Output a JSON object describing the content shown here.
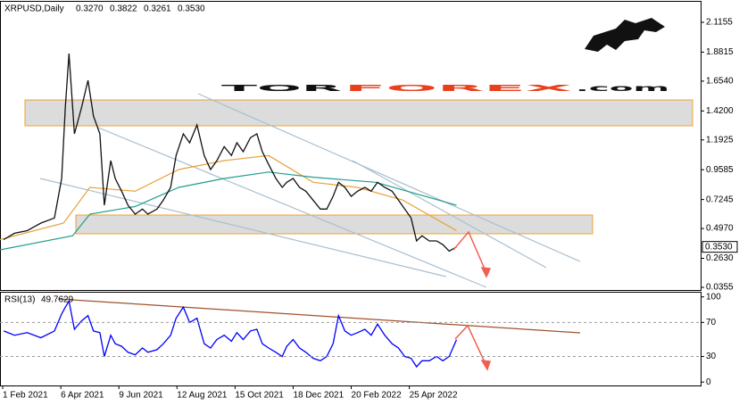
{
  "logo": {
    "part1": "TOR",
    "part2": "FOREX",
    "part3": ".com"
  },
  "chart_data": [
    {
      "type": "line",
      "title": "XRPUSD,Daily",
      "ohlc": [
        "0.3270",
        "0.3822",
        "0.3261",
        "0.3530"
      ],
      "color": "#111111",
      "x": [
        "2021-02-02",
        "2021-02-14",
        "2021-02-28",
        "2021-03-15",
        "2021-03-30",
        "2021-04-07",
        "2021-04-11",
        "2021-04-15",
        "2021-04-21",
        "2021-04-29",
        "2021-05-06",
        "2021-05-12",
        "2021-05-19",
        "2021-05-24",
        "2021-05-31",
        "2021-06-05",
        "2021-06-12",
        "2021-06-19",
        "2021-06-27",
        "2021-07-05",
        "2021-07-11",
        "2021-07-21",
        "2021-07-28",
        "2021-08-05",
        "2021-08-11",
        "2021-08-19",
        "2021-08-26",
        "2021-09-03",
        "2021-09-11",
        "2021-09-18",
        "2021-09-25",
        "2021-10-03",
        "2021-10-11",
        "2021-10-17",
        "2021-10-24",
        "2021-11-01",
        "2021-11-08",
        "2021-11-14",
        "2021-11-21",
        "2021-11-29",
        "2021-12-06",
        "2021-12-11",
        "2021-12-18",
        "2021-12-25",
        "2022-01-01",
        "2022-01-09",
        "2022-01-17",
        "2022-01-24",
        "2022-01-31",
        "2022-02-06",
        "2022-02-13",
        "2022-02-20",
        "2022-02-27",
        "2022-03-07",
        "2022-03-14",
        "2022-03-21",
        "2022-03-29",
        "2022-04-06",
        "2022-04-13",
        "2022-04-20",
        "2022-04-27",
        "2022-05-03",
        "2022-05-09",
        "2022-05-17",
        "2022-05-25",
        "2022-06-01",
        "2022-06-08",
        "2022-06-16"
      ],
      "values": [
        0.41,
        0.46,
        0.48,
        0.54,
        0.58,
        0.89,
        1.45,
        1.87,
        1.24,
        1.45,
        1.66,
        1.38,
        1.24,
        0.68,
        1.03,
        0.89,
        0.79,
        0.68,
        0.61,
        0.65,
        0.61,
        0.65,
        0.72,
        0.82,
        1.07,
        1.24,
        1.17,
        1.31,
        1.07,
        0.96,
        1.03,
        1.14,
        1.07,
        1.17,
        1.1,
        1.21,
        1.24,
        1.1,
        1.0,
        0.89,
        0.82,
        0.86,
        0.89,
        0.82,
        0.79,
        0.72,
        0.65,
        0.65,
        0.75,
        0.86,
        0.82,
        0.75,
        0.79,
        0.82,
        0.79,
        0.86,
        0.82,
        0.79,
        0.72,
        0.65,
        0.58,
        0.4,
        0.44,
        0.4,
        0.4,
        0.37,
        0.32,
        0.353
      ],
      "ma_lines": [
        {
          "color": "#e8a13a",
          "x": [
            "2021-01-29",
            "2021-04-09",
            "2021-05-08",
            "2021-06-27",
            "2021-08-14",
            "2021-10-03",
            "2021-11-21",
            "2022-01-09",
            "2022-02-27",
            "2022-04-18",
            "2022-06-16"
          ],
          "values": [
            0.41,
            0.54,
            0.82,
            0.79,
            0.96,
            1.03,
            1.07,
            0.86,
            0.82,
            0.72,
            0.48
          ]
        },
        {
          "color": "#1f9e8f",
          "x": [
            "2021-01-29",
            "2021-04-19",
            "2021-05-08",
            "2021-06-27",
            "2021-08-14",
            "2021-10-03",
            "2021-11-21",
            "2022-01-09",
            "2022-03-19",
            "2022-06-16"
          ],
          "values": [
            0.33,
            0.44,
            0.61,
            0.67,
            0.82,
            0.89,
            0.94,
            0.9,
            0.86,
            0.68
          ]
        }
      ],
      "last_price": {
        "value": 0.353,
        "label": "0.3530"
      },
      "xlim": [
        "2021-01-29",
        "2023-03-12"
      ],
      "xticks": [
        {
          "value": "2021-02-01",
          "label": "1 Feb 2021"
        },
        {
          "value": "2021-04-06",
          "label": "6 Apr 2021"
        },
        {
          "value": "2021-06-09",
          "label": "9 Jun 2021"
        },
        {
          "value": "2021-08-12",
          "label": "12 Aug 2021"
        },
        {
          "value": "2021-10-15",
          "label": "15 Oct 2021"
        },
        {
          "value": "2021-12-18",
          "label": "18 Dec 2021"
        },
        {
          "value": "2022-02-20",
          "label": "20 Feb 2022"
        },
        {
          "value": "2022-04-25",
          "label": "25 Apr 2022"
        }
      ],
      "ylim": [
        0.0145,
        2.2836
      ],
      "yticks": [
        2.1155,
        1.8815,
        {
          "value": 1.654,
          "label": "1.6540"
        },
        {
          "value": 1.42,
          "label": "1.4200"
        },
        1.1925,
        0.9585,
        0.7245,
        {
          "value": 0.497,
          "label": "0.4970"
        },
        {
          "value": 0.263,
          "label": "0.2630"
        },
        0.0355
      ]
    },
    {
      "type": "line",
      "title": "RSI(13)",
      "current": 49.7629,
      "color": "#0000ff",
      "values": [
        60,
        55,
        58,
        52,
        60,
        80,
        88,
        95,
        62,
        72,
        78,
        60,
        58,
        30,
        55,
        45,
        42,
        35,
        32,
        40,
        35,
        38,
        45,
        55,
        75,
        88,
        70,
        75,
        45,
        40,
        50,
        55,
        48,
        58,
        50,
        60,
        62,
        45,
        40,
        35,
        30,
        42,
        50,
        40,
        35,
        28,
        25,
        30,
        45,
        78,
        60,
        55,
        58,
        62,
        55,
        68,
        55,
        45,
        40,
        30,
        28,
        18,
        25,
        25,
        30,
        25,
        30,
        49.7629
      ],
      "ylim": [
        -4,
        106
      ],
      "yticks": [
        100,
        70,
        30,
        0
      ]
    }
  ]
}
